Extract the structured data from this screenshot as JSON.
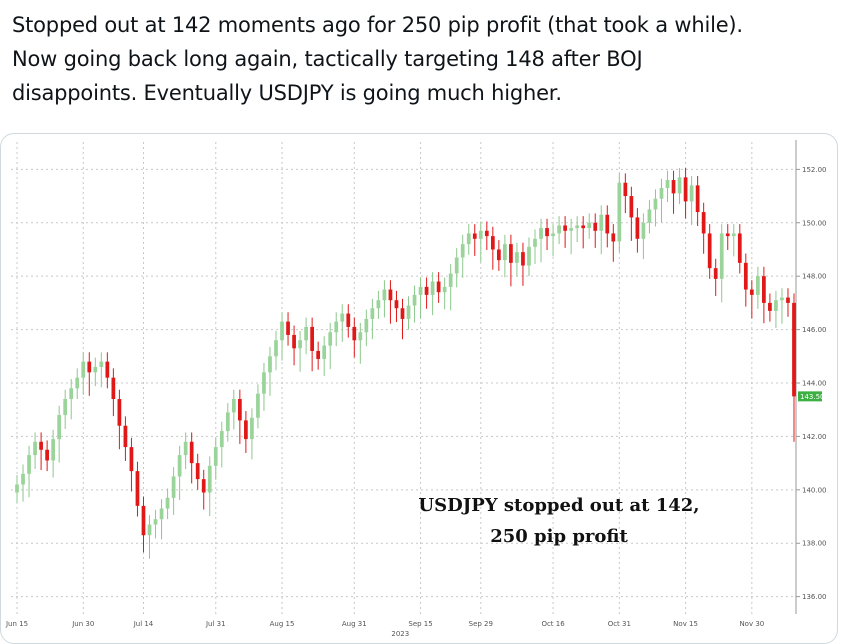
{
  "tweet": {
    "lines": [
      "Stopped out at 142 moments ago for 250 pip profit (that took a while).",
      "Now going back long again, tactically targeting 148 after BOJ",
      "disappoints. Eventually USDJPY is going much higher."
    ]
  },
  "colors": {
    "up": "#9ad49a",
    "down": "#e01818",
    "grid": "#c8c8c8",
    "current_label_bg": "#3cb043"
  },
  "chart_data": {
    "type": "candlestick",
    "title": "",
    "xlabel": "2023",
    "ylabel": "",
    "annotation_lines": [
      "USDJPY stopped out at 142,",
      "250 pip profit"
    ],
    "ylim": [
      135.5,
      152.8
    ],
    "yticks": [
      136,
      138,
      140,
      142,
      144,
      146,
      148,
      150,
      152
    ],
    "ytick_labels": [
      "136.00",
      "138.00",
      "140.00",
      "142.00",
      "144.00",
      "146.00",
      "148.00",
      "150.00",
      "152.00"
    ],
    "current_value_label": "143.50",
    "current_value": 143.5,
    "xtick_labels": [
      "Jun 15",
      "Jun 30",
      "Jul 14",
      "Jul 31",
      "Aug 15",
      "Aug 31",
      "Sep 15",
      "Sep 29",
      "Oct 16",
      "Oct 31",
      "Nov 15",
      "Nov 30"
    ],
    "xtick_index": [
      0,
      11,
      21,
      33,
      44,
      56,
      67,
      77,
      89,
      100,
      111,
      122
    ],
    "close": [
      140.2,
      140.6,
      141.3,
      141.8,
      141.5,
      141.1,
      141.9,
      142.8,
      143.4,
      143.8,
      144.2,
      144.8,
      144.4,
      144.6,
      144.8,
      144.2,
      143.4,
      142.4,
      141.6,
      140.7,
      139.4,
      138.3,
      138.7,
      138.9,
      139.3,
      139.7,
      140.5,
      141.3,
      141.8,
      141.0,
      140.4,
      139.9,
      140.9,
      141.6,
      142.2,
      142.9,
      143.4,
      142.6,
      141.9,
      142.7,
      143.6,
      144.4,
      145.0,
      145.6,
      146.3,
      145.8,
      145.3,
      145.6,
      146.1,
      145.2,
      144.9,
      145.4,
      145.9,
      146.3,
      146.6,
      146.1,
      145.6,
      145.9,
      146.4,
      146.8,
      147.1,
      147.5,
      147.1,
      146.8,
      146.4,
      146.9,
      147.3,
      147.6,
      147.3,
      147.8,
      147.4,
      147.6,
      148.1,
      148.7,
      149.2,
      149.6,
      149.4,
      149.7,
      149.5,
      149.0,
      148.6,
      149.2,
      148.5,
      148.9,
      148.4,
      149.1,
      149.4,
      149.8,
      149.5,
      149.6,
      149.9,
      149.7,
      149.8,
      149.9,
      149.8,
      150.0,
      149.7,
      150.3,
      149.6,
      149.3,
      151.5,
      151.0,
      150.2,
      149.4,
      150.0,
      150.5,
      150.9,
      151.3,
      151.6,
      151.1,
      151.7,
      150.8,
      151.4,
      150.4,
      149.6,
      148.3,
      147.9,
      149.6,
      149.5,
      149.6,
      148.5,
      147.5,
      147.3,
      148.0,
      147.0,
      146.7,
      147.1,
      147.2,
      147.0,
      143.5
    ]
  }
}
